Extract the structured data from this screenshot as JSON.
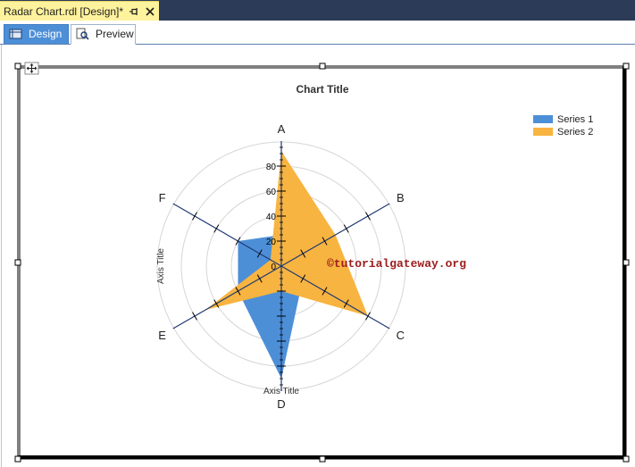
{
  "window": {
    "document_tab_title": "Radar Chart.rdl [Design]*"
  },
  "view_tabs": {
    "design_label": "Design",
    "preview_label": "Preview"
  },
  "colors": {
    "series_1": "#4d8fd7",
    "series_2": "#f8b440",
    "axis_line": "#1f3a73",
    "grid_circle": "#d6d6d6",
    "watermark": "#9b1c1c"
  },
  "watermark_text": "©tutorialgateway.org",
  "chart_data": {
    "type": "radar",
    "title": "Chart Title",
    "categories": [
      "A",
      "B",
      "C",
      "D",
      "E",
      "F"
    ],
    "series": [
      {
        "name": "Series 1",
        "values": [
          25,
          15,
          20,
          90,
          40,
          40
        ]
      },
      {
        "name": "Series 2",
        "values": [
          92,
          50,
          80,
          20,
          70,
          10
        ]
      }
    ],
    "value_axis": {
      "title": "Axis Title",
      "ticks": [
        0,
        20,
        40,
        60,
        80
      ],
      "max": 100
    },
    "category_axis_title": "Axis Title",
    "grid_circles": true,
    "legend_position": "top-right"
  }
}
